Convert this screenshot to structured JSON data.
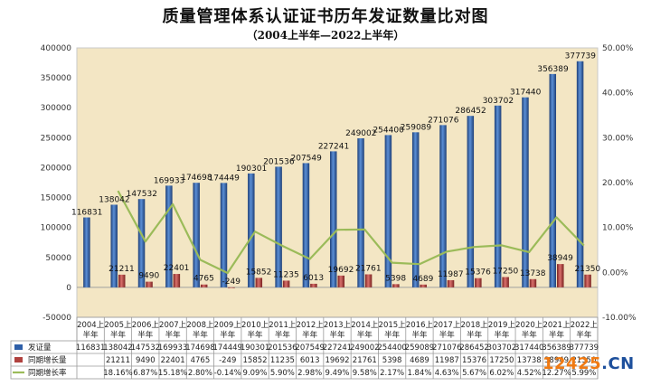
{
  "title": "质量管理体系认证证书历年发证数量比对图",
  "subtitle": "（2004上半年—2022上半年）",
  "watermark": {
    "main": "12425",
    "suffix": ".CN"
  },
  "colors": {
    "issued": "#2e5fa8",
    "growth_amount": "#b0413e",
    "growth_rate": "#9bbb59",
    "plot_bg": "#f3e6c4"
  },
  "chart_data": {
    "type": "bar",
    "categories": [
      "2004上半年",
      "2005上半年",
      "2006上半年",
      "2007上半年",
      "2008上半年",
      "2009上半年",
      "2010上半年",
      "2011上半年",
      "2012上半年",
      "2013上半年",
      "2014上半年",
      "2015上半年",
      "2016上半年",
      "2017上半年",
      "2018上半年",
      "2019上半年",
      "2020上半年",
      "2021上半年",
      "2022上半年"
    ],
    "category_lines": [
      [
        "2004上",
        "半年"
      ],
      [
        "2005上",
        "半年"
      ],
      [
        "2006上",
        "半年"
      ],
      [
        "2007上",
        "半年"
      ],
      [
        "2008上",
        "半年"
      ],
      [
        "2009上",
        "半年"
      ],
      [
        "2010上",
        "半年"
      ],
      [
        "2011上",
        "半年"
      ],
      [
        "2012上",
        "半年"
      ],
      [
        "2013上",
        "半年"
      ],
      [
        "2014上",
        "半年"
      ],
      [
        "2015上",
        "半年"
      ],
      [
        "2016上",
        "半年"
      ],
      [
        "2017上",
        "半年"
      ],
      [
        "2018上",
        "半年"
      ],
      [
        "2019上",
        "半年"
      ],
      [
        "2020上",
        "半年"
      ],
      [
        "2021上",
        "半年"
      ],
      [
        "2022上",
        "半年"
      ]
    ],
    "series": [
      {
        "name": "发证量",
        "type": "bar",
        "axis": "left",
        "values": [
          116831,
          138042,
          147532,
          169933,
          174698,
          174449,
          190301,
          201536,
          207549,
          227241,
          249002,
          254400,
          259089,
          271076,
          286452,
          303702,
          317440,
          356389,
          377739
        ]
      },
      {
        "name": "同期增长量",
        "type": "bar",
        "axis": "left",
        "values": [
          null,
          21211,
          9490,
          22401,
          4765,
          -249,
          15852,
          11235,
          6013,
          19692,
          21761,
          5398,
          4689,
          11987,
          15376,
          17250,
          13738,
          38949,
          21350
        ]
      },
      {
        "name": "同期增长率",
        "type": "line",
        "axis": "right",
        "values": [
          null,
          18.16,
          6.87,
          15.18,
          2.8,
          -0.14,
          9.09,
          5.9,
          2.98,
          9.49,
          9.58,
          2.17,
          1.84,
          4.63,
          5.67,
          6.02,
          4.52,
          12.27,
          5.99
        ],
        "labels": [
          "",
          "18.16%",
          "6.87%",
          "15.18%",
          "2.80%",
          "-0.14%",
          "9.09%",
          "5.90%",
          "2.98%",
          "9.49%",
          "9.58%",
          "2.17%",
          "1.84%",
          "4.63%",
          "5.67%",
          "6.02%",
          "4.52%",
          "12.27%",
          "5.99%"
        ]
      }
    ],
    "ylim": [
      -50000,
      400000
    ],
    "yticks": [
      "400000",
      "350000",
      "300000",
      "250000",
      "200000",
      "150000",
      "100000",
      "50000",
      "0",
      "-50000"
    ],
    "y2lim": [
      -10,
      50
    ],
    "y2ticks": [
      "50.00%",
      "40.00%",
      "30.00%",
      "20.00%",
      "10.00%",
      "0.00%",
      "-10.00%"
    ],
    "grid": false,
    "legend": "data-table"
  }
}
